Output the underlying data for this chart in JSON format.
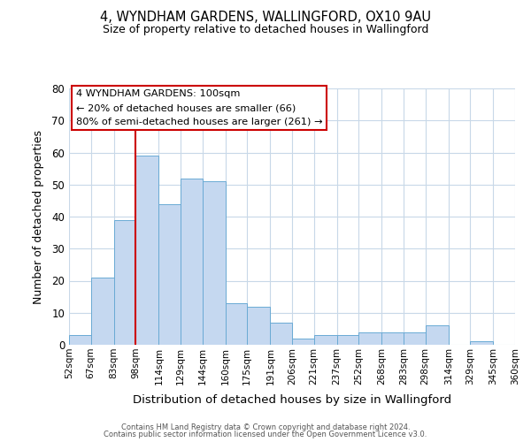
{
  "title": "4, WYNDHAM GARDENS, WALLINGFORD, OX10 9AU",
  "subtitle": "Size of property relative to detached houses in Wallingford",
  "xlabel": "Distribution of detached houses by size in Wallingford",
  "ylabel": "Number of detached properties",
  "bar_color": "#c5d8f0",
  "bar_edge_color": "#6aaad4",
  "background_color": "#ffffff",
  "grid_color": "#c8d8e8",
  "bin_labels": [
    "52sqm",
    "67sqm",
    "83sqm",
    "98sqm",
    "114sqm",
    "129sqm",
    "144sqm",
    "160sqm",
    "175sqm",
    "191sqm",
    "206sqm",
    "221sqm",
    "237sqm",
    "252sqm",
    "268sqm",
    "283sqm",
    "298sqm",
    "314sqm",
    "329sqm",
    "345sqm",
    "360sqm"
  ],
  "bar_heights": [
    3,
    21,
    39,
    59,
    44,
    52,
    51,
    13,
    12,
    7,
    2,
    3,
    3,
    4,
    4,
    4,
    6,
    0,
    1,
    0
  ],
  "ylim": [
    0,
    80
  ],
  "yticks": [
    0,
    10,
    20,
    30,
    40,
    50,
    60,
    70,
    80
  ],
  "property_line_x": 98,
  "annotation_title": "4 WYNDHAM GARDENS: 100sqm",
  "annotation_line1": "← 20% of detached houses are smaller (66)",
  "annotation_line2": "80% of semi-detached houses are larger (261) →",
  "annotation_box_color": "#ffffff",
  "annotation_box_edge_color": "#cc0000",
  "red_line_color": "#cc0000",
  "footer1": "Contains HM Land Registry data © Crown copyright and database right 2024.",
  "footer2": "Contains public sector information licensed under the Open Government Licence v3.0."
}
